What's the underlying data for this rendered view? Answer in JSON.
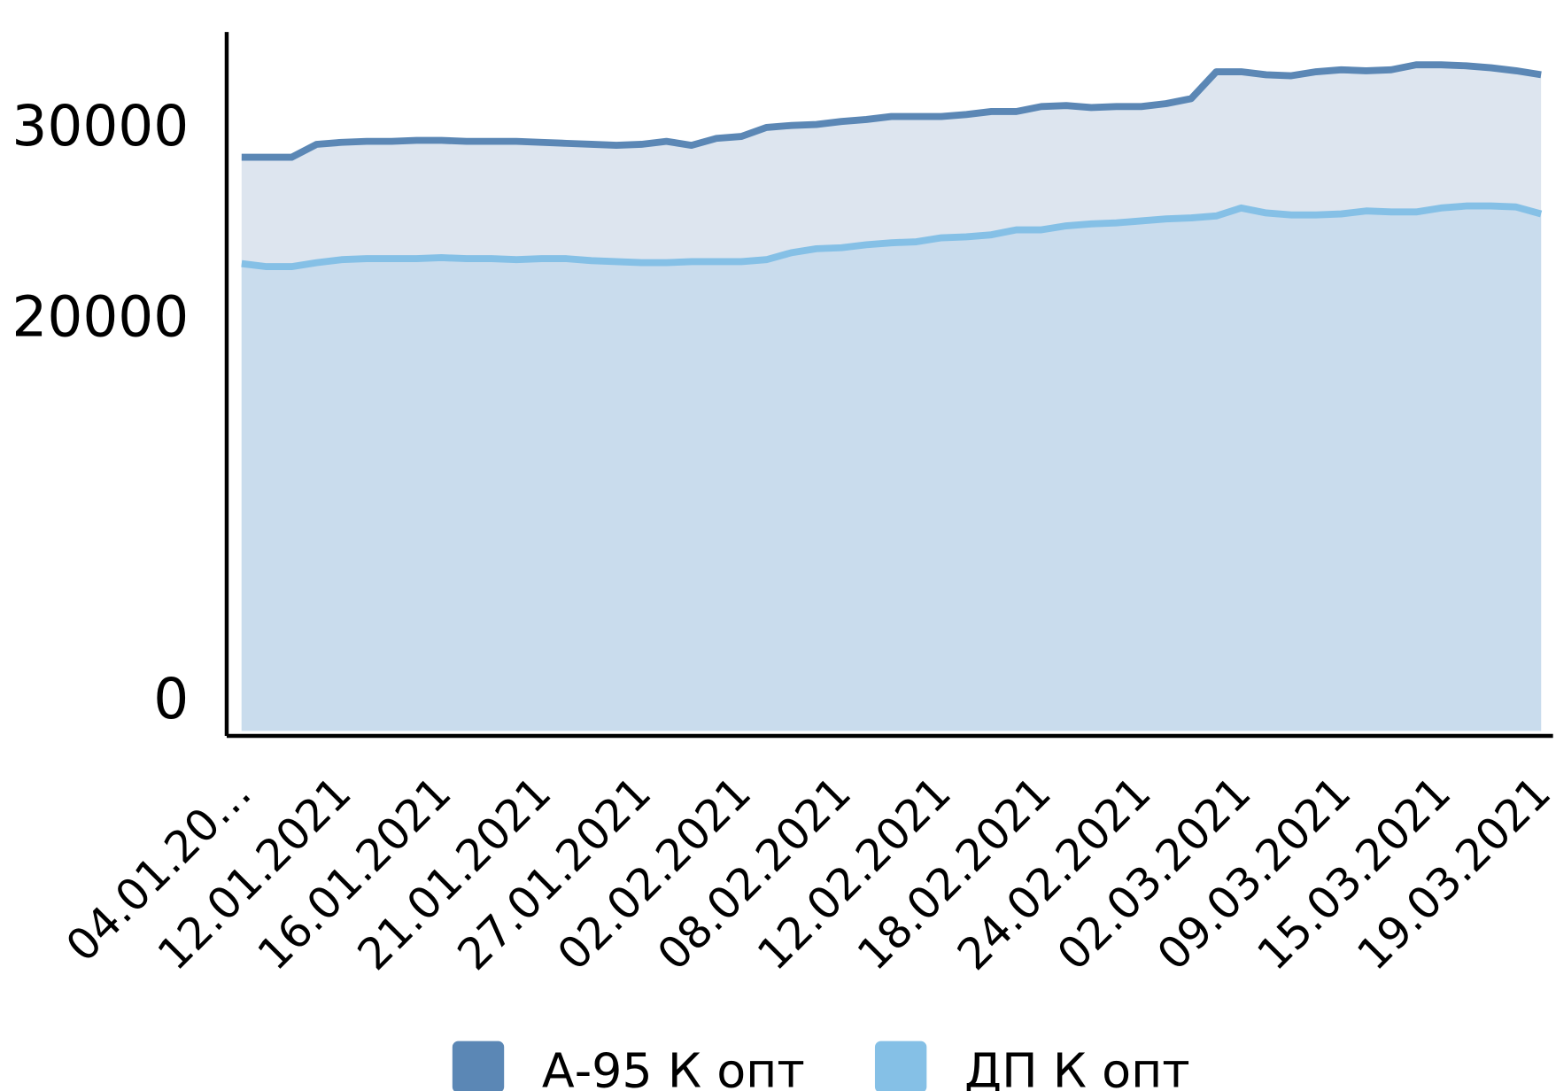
{
  "chart_data": {
    "type": "area",
    "categories": [
      "04.01.20…",
      null,
      null,
      null,
      "12.01.2021",
      null,
      null,
      null,
      "16.01.2021",
      null,
      null,
      null,
      "21.01.2021",
      null,
      null,
      null,
      "27.01.2021",
      null,
      null,
      null,
      "02.02.2021",
      null,
      null,
      null,
      "08.02.2021",
      null,
      null,
      null,
      "12.02.2021",
      null,
      null,
      null,
      "18.02.2021",
      null,
      null,
      null,
      "24.02.2021",
      null,
      null,
      null,
      "02.03.2021",
      null,
      null,
      null,
      "09.03.2021",
      null,
      null,
      null,
      "15.03.2021",
      null,
      null,
      null,
      "19.03.2021"
    ],
    "series": [
      {
        "name": "А-95 К опт",
        "color": "#5b87b5",
        "fill": "#dde5ef",
        "values": [
          28438,
          28438,
          28438,
          29115,
          29219,
          29271,
          29271,
          29323,
          29323,
          29271,
          29271,
          29271,
          29219,
          29167,
          29115,
          29063,
          29115,
          29271,
          29063,
          29427,
          29531,
          30000,
          30104,
          30156,
          30313,
          30417,
          30573,
          30573,
          30573,
          30677,
          30833,
          30833,
          31094,
          31146,
          31042,
          31094,
          31094,
          31250,
          31510,
          32917,
          32917,
          32760,
          32708,
          32917,
          33021,
          32969,
          33021,
          33281,
          33281,
          33229,
          33125,
          32969,
          32760
        ]
      },
      {
        "name": "ДП К опт",
        "color": "#85c0e6",
        "fill": "#c9dced",
        "values": [
          22865,
          22708,
          22708,
          22917,
          23073,
          23125,
          23125,
          23125,
          23177,
          23125,
          23125,
          23073,
          23125,
          23125,
          23021,
          22969,
          22917,
          22917,
          22969,
          22969,
          22969,
          23073,
          23438,
          23646,
          23698,
          23854,
          23958,
          24010,
          24219,
          24271,
          24375,
          24635,
          24635,
          24844,
          24948,
          25000,
          25104,
          25208,
          25260,
          25365,
          25781,
          25521,
          25417,
          25417,
          25469,
          25625,
          25573,
          25573,
          25781,
          25885,
          25885,
          25833,
          25469
        ]
      }
    ],
    "ylim": [
      -1875,
      35000
    ],
    "yticks": [
      0,
      20000,
      30000
    ],
    "legend": "bottom"
  }
}
